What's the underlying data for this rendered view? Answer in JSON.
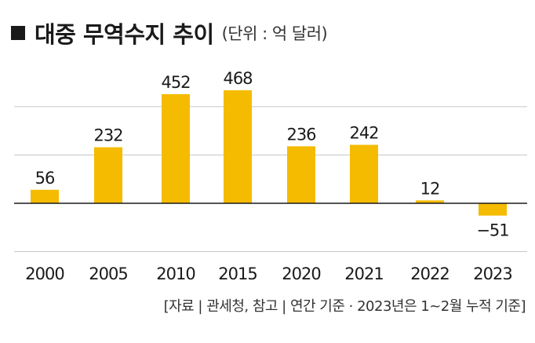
{
  "header": {
    "title": "대중 무역수지 추이",
    "unit": "(단위 : 억 달러)"
  },
  "source": "[자료 | 관세청, 참고 | 연간 기준 · 2023년은 1~2월 누적 기준]",
  "colors": {
    "bar": "#F5BB00",
    "grid": "#c8c8c8",
    "zero_line": "#1a1a1a",
    "text": "#1a1a1a"
  },
  "chart_data": {
    "type": "bar",
    "title": "대중 무역수지 추이",
    "categories": [
      "2000",
      "2005",
      "2010",
      "2015",
      "2020",
      "2021",
      "2022",
      "2023"
    ],
    "values": [
      56,
      232,
      452,
      468,
      236,
      242,
      12,
      -51
    ],
    "value_labels": [
      "56",
      "232",
      "452",
      "468",
      "236",
      "242",
      "12",
      "−51"
    ],
    "ylabel": "",
    "xlabel": "",
    "ylim": [
      -185,
      525
    ],
    "grid": true
  }
}
